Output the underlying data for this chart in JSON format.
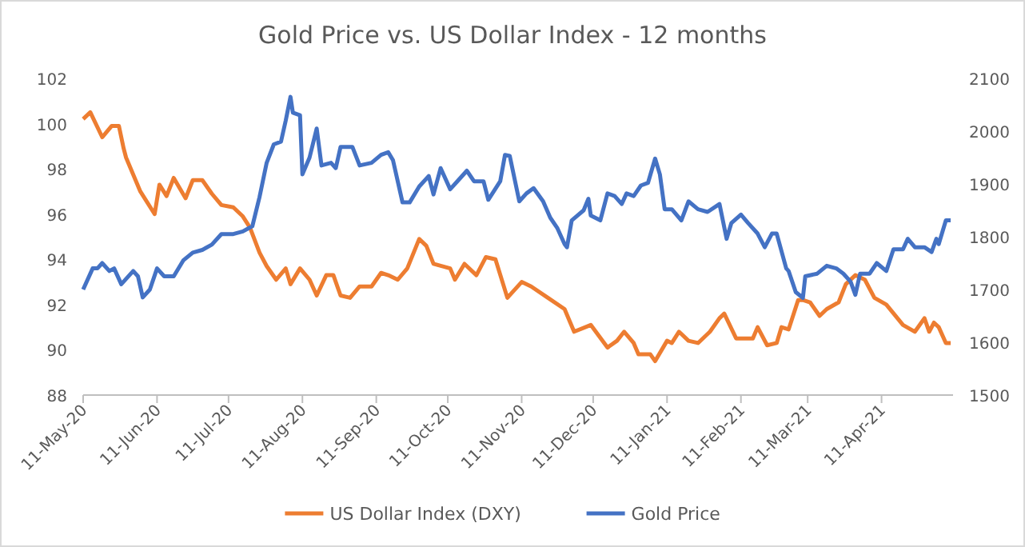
{
  "chart_data": {
    "type": "line",
    "title": "Gold Price vs. US Dollar Index - 12 months",
    "xlim": [
      "2020-05-11",
      "2021-05-11"
    ],
    "xticks": [
      {
        "value": "2020-05-11",
        "label": "11-May-20"
      },
      {
        "value": "2020-06-11",
        "label": "11-Jun-20"
      },
      {
        "value": "2020-07-11",
        "label": "11-Jul-20"
      },
      {
        "value": "2020-08-11",
        "label": "11-Aug-20"
      },
      {
        "value": "2020-09-11",
        "label": "11-Sep-20"
      },
      {
        "value": "2020-10-11",
        "label": "11-Oct-20"
      },
      {
        "value": "2020-11-11",
        "label": "11-Nov-20"
      },
      {
        "value": "2020-12-11",
        "label": "11-Dec-20"
      },
      {
        "value": "2021-01-11",
        "label": "11-Jan-21"
      },
      {
        "value": "2021-02-11",
        "label": "11-Feb-21"
      },
      {
        "value": "2021-03-11",
        "label": "11-Mar-21"
      },
      {
        "value": "2021-04-11",
        "label": "11-Apr-21"
      }
    ],
    "ylim": [
      88,
      102
    ],
    "yticks": [
      88,
      90,
      92,
      94,
      96,
      98,
      100,
      102
    ],
    "y2lim": [
      1500,
      2100
    ],
    "y2ticks": [
      1500,
      1600,
      1700,
      1800,
      1900,
      2000,
      2100
    ],
    "legend": "bottom",
    "marker": "none",
    "line_style": "solid",
    "series": [
      {
        "name": "US Dollar Index (DXY)",
        "color": "#ed7d31",
        "x": [
          "2020-05-11",
          "2020-05-14",
          "2020-05-19",
          "2020-05-23",
          "2020-05-26",
          "2020-05-28",
          "2020-05-29",
          "2020-06-04",
          "2020-06-10",
          "2020-06-12",
          "2020-06-15",
          "2020-06-18",
          "2020-06-23",
          "2020-06-26",
          "2020-06-30",
          "2020-07-04",
          "2020-07-08",
          "2020-07-13",
          "2020-07-17",
          "2020-07-20",
          "2020-07-24",
          "2020-07-27",
          "2020-07-31",
          "2020-08-04",
          "2020-08-06",
          "2020-08-10",
          "2020-08-14",
          "2020-08-17",
          "2020-08-21",
          "2020-08-24",
          "2020-08-27",
          "2020-08-31",
          "2020-09-04",
          "2020-09-09",
          "2020-09-13",
          "2020-09-16",
          "2020-09-20",
          "2020-09-24",
          "2020-09-29",
          "2020-10-02",
          "2020-10-05",
          "2020-10-12",
          "2020-10-14",
          "2020-10-18",
          "2020-10-23",
          "2020-10-27",
          "2020-10-31",
          "2020-11-05",
          "2020-11-11",
          "2020-11-15",
          "2020-11-22",
          "2020-11-29",
          "2020-12-03",
          "2020-12-10",
          "2020-12-17",
          "2020-12-21",
          "2020-12-24",
          "2020-12-28",
          "2020-12-30",
          "2021-01-04",
          "2021-01-06",
          "2021-01-11",
          "2021-01-13",
          "2021-01-16",
          "2021-01-20",
          "2021-01-24",
          "2021-01-29",
          "2021-02-02",
          "2021-02-04",
          "2021-02-09",
          "2021-02-16",
          "2021-02-18",
          "2021-02-22",
          "2021-02-26",
          "2021-02-28",
          "2021-03-03",
          "2021-03-07",
          "2021-03-09",
          "2021-03-12",
          "2021-03-16",
          "2021-03-19",
          "2021-03-24",
          "2021-03-27",
          "2021-03-31",
          "2021-04-04",
          "2021-04-08",
          "2021-04-13",
          "2021-04-20",
          "2021-04-25",
          "2021-04-29",
          "2021-05-01",
          "2021-05-03",
          "2021-05-05",
          "2021-05-08",
          "2021-05-10"
        ],
        "values": [
          100.2,
          100.5,
          99.4,
          99.9,
          99.9,
          98.9,
          98.5,
          97.0,
          96.0,
          97.3,
          96.8,
          97.6,
          96.7,
          97.5,
          97.5,
          96.9,
          96.4,
          96.3,
          95.9,
          95.4,
          94.3,
          93.7,
          93.1,
          93.6,
          92.9,
          93.6,
          93.1,
          92.4,
          93.3,
          93.3,
          92.4,
          92.3,
          92.8,
          92.8,
          93.4,
          93.3,
          93.1,
          93.6,
          94.9,
          94.6,
          93.8,
          93.6,
          93.1,
          93.8,
          93.3,
          94.1,
          94.0,
          92.3,
          93.0,
          92.8,
          92.3,
          91.8,
          90.8,
          91.1,
          90.1,
          90.4,
          90.8,
          90.3,
          89.8,
          89.8,
          89.5,
          90.4,
          90.3,
          90.8,
          90.4,
          90.3,
          90.8,
          91.4,
          91.6,
          90.5,
          90.5,
          91.0,
          90.2,
          90.3,
          91.0,
          90.9,
          92.2,
          92.2,
          92.1,
          91.5,
          91.8,
          92.1,
          92.9,
          93.3,
          93.1,
          92.3,
          92.0,
          91.1,
          90.8,
          91.4,
          90.8,
          91.2,
          91.0,
          90.3,
          90.3
        ]
      },
      {
        "name": "Gold Price",
        "color": "#4472c4",
        "axis": "y2",
        "x": [
          "2020-05-11",
          "2020-05-15",
          "2020-05-17",
          "2020-05-19",
          "2020-05-22",
          "2020-05-24",
          "2020-05-27",
          "2020-06-01",
          "2020-06-03",
          "2020-06-05",
          "2020-06-08",
          "2020-06-11",
          "2020-06-14",
          "2020-06-18",
          "2020-06-22",
          "2020-06-26",
          "2020-06-30",
          "2020-07-04",
          "2020-07-08",
          "2020-07-13",
          "2020-07-17",
          "2020-07-21",
          "2020-07-24",
          "2020-07-27",
          "2020-07-30",
          "2020-08-02",
          "2020-08-04",
          "2020-08-06",
          "2020-08-07",
          "2020-08-10",
          "2020-08-11",
          "2020-08-14",
          "2020-08-17",
          "2020-08-19",
          "2020-08-23",
          "2020-08-25",
          "2020-08-27",
          "2020-09-01",
          "2020-09-04",
          "2020-09-09",
          "2020-09-13",
          "2020-09-16",
          "2020-09-18",
          "2020-09-22",
          "2020-09-25",
          "2020-09-29",
          "2020-10-03",
          "2020-10-05",
          "2020-10-08",
          "2020-10-12",
          "2020-10-15",
          "2020-10-19",
          "2020-10-22",
          "2020-10-26",
          "2020-10-28",
          "2020-11-02",
          "2020-11-04",
          "2020-11-06",
          "2020-11-10",
          "2020-11-13",
          "2020-11-16",
          "2020-11-20",
          "2020-11-23",
          "2020-11-26",
          "2020-11-29",
          "2020-11-30",
          "2020-12-02",
          "2020-12-07",
          "2020-12-09",
          "2020-12-10",
          "2020-12-14",
          "2020-12-17",
          "2020-12-20",
          "2020-12-23",
          "2020-12-25",
          "2020-12-28",
          "2020-12-31",
          "2021-01-03",
          "2021-01-06",
          "2021-01-08",
          "2021-01-10",
          "2021-01-13",
          "2021-01-17",
          "2021-01-20",
          "2021-01-24",
          "2021-01-28",
          "2021-02-02",
          "2021-02-05",
          "2021-02-07",
          "2021-02-11",
          "2021-02-14",
          "2021-02-18",
          "2021-02-21",
          "2021-02-24",
          "2021-02-26",
          "2021-03-02",
          "2021-03-03",
          "2021-03-06",
          "2021-03-09",
          "2021-03-10",
          "2021-03-15",
          "2021-03-19",
          "2021-03-23",
          "2021-03-26",
          "2021-03-29",
          "2021-03-31",
          "2021-04-02",
          "2021-04-06",
          "2021-04-09",
          "2021-04-13",
          "2021-04-16",
          "2021-04-20",
          "2021-04-22",
          "2021-04-25",
          "2021-04-29",
          "2021-05-02",
          "2021-05-04",
          "2021-05-05",
          "2021-05-08",
          "2021-05-10"
        ],
        "values": [
          1700,
          1740,
          1740,
          1750,
          1735,
          1740,
          1710,
          1735,
          1725,
          1685,
          1700,
          1740,
          1725,
          1725,
          1755,
          1770,
          1775,
          1785,
          1805,
          1805,
          1810,
          1820,
          1875,
          1940,
          1975,
          1980,
          2020,
          2065,
          2035,
          2030,
          1918,
          1950,
          2005,
          1935,
          1940,
          1930,
          1970,
          1970,
          1935,
          1940,
          1955,
          1960,
          1945,
          1865,
          1865,
          1895,
          1915,
          1880,
          1930,
          1890,
          1905,
          1925,
          1905,
          1905,
          1870,
          1905,
          1955,
          1953,
          1867,
          1882,
          1892,
          1867,
          1836,
          1816,
          1786,
          1780,
          1831,
          1850,
          1872,
          1840,
          1831,
          1882,
          1877,
          1862,
          1882,
          1877,
          1897,
          1902,
          1948,
          1918,
          1852,
          1852,
          1831,
          1867,
          1852,
          1847,
          1862,
          1796,
          1826,
          1842,
          1826,
          1806,
          1780,
          1806,
          1806,
          1740,
          1735,
          1695,
          1684,
          1725,
          1730,
          1745,
          1740,
          1730,
          1715,
          1690,
          1730,
          1730,
          1750,
          1735,
          1776,
          1776,
          1796,
          1780,
          1780,
          1771,
          1796,
          1786,
          1831,
          1831
        ]
      }
    ]
  }
}
